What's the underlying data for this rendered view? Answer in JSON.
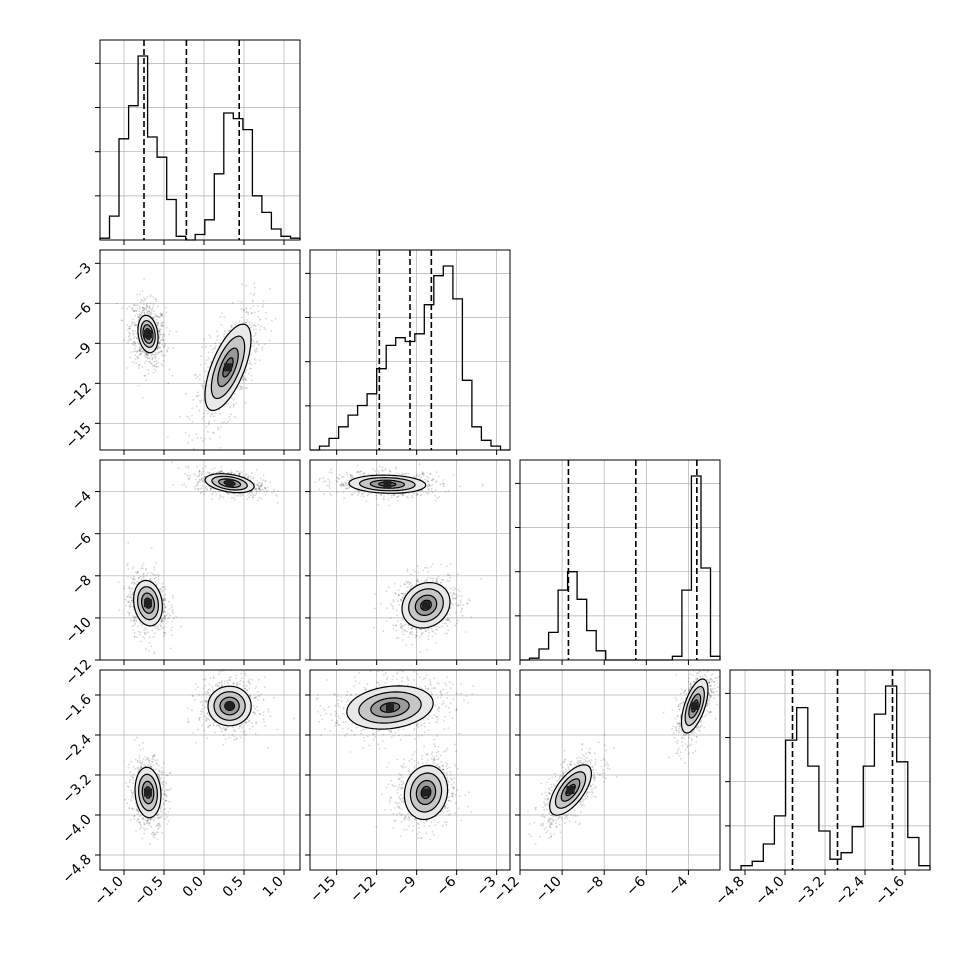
{
  "chart_data": {
    "type": "corner",
    "n_params": 4,
    "params": [
      {
        "index": 0,
        "range": [
          -1.3,
          1.2
        ],
        "ticks": [
          -1.0,
          -0.5,
          0.0,
          0.5,
          1.0
        ],
        "tick_labels": [
          "−1.0",
          "−0.5",
          "0.0",
          "0.5",
          "1.0"
        ],
        "quantiles": [
          -0.75,
          -0.22,
          0.44
        ],
        "hist_heights": [
          0.01,
          0.13,
          0.55,
          0.73,
          1.0,
          0.56,
          0.45,
          0.22,
          0.02,
          0.0,
          0.03,
          0.11,
          0.36,
          0.69,
          0.66,
          0.6,
          0.24,
          0.15,
          0.06,
          0.02,
          0.01
        ]
      },
      {
        "index": 1,
        "range": [
          -17.0,
          -2.0
        ],
        "ticks": [
          -15,
          -12,
          -9,
          -6,
          -3
        ],
        "tick_labels": [
          "−15",
          "−12",
          "−9",
          "−6",
          "−3"
        ],
        "quantiles": [
          -11.8,
          -9.5,
          -7.9
        ],
        "hist_heights": [
          0.0,
          0.02,
          0.06,
          0.12,
          0.18,
          0.23,
          0.29,
          0.42,
          0.54,
          0.58,
          0.56,
          0.6,
          0.75,
          0.9,
          0.95,
          0.78,
          0.36,
          0.12,
          0.05,
          0.02,
          0.0
        ]
      },
      {
        "index": 2,
        "range": [
          -12.0,
          -2.5
        ],
        "ticks": [
          -12,
          -10,
          -8,
          -6,
          -4
        ],
        "tick_labels": [
          "−12",
          "−10",
          "−8",
          "−6",
          "−4"
        ],
        "quantiles": [
          -9.7,
          -6.5,
          -3.6
        ],
        "hist_heights": [
          0.0,
          0.01,
          0.06,
          0.15,
          0.38,
          0.48,
          0.33,
          0.16,
          0.05,
          0.0,
          0.0,
          0.0,
          0.0,
          0.0,
          0.0,
          0.0,
          0.02,
          0.38,
          1.0,
          0.5,
          0.02
        ]
      },
      {
        "index": 3,
        "range": [
          -5.1,
          -1.1
        ],
        "ticks": [
          -4.8,
          -4.0,
          -3.2,
          -2.4,
          -1.6
        ],
        "tick_labels": [
          "−4.8",
          "−4.0",
          "−3.2",
          "−2.4",
          "−1.6"
        ],
        "quantiles": [
          -3.85,
          -2.95,
          -1.85
        ],
        "hist_heights": [
          0.0,
          0.02,
          0.04,
          0.12,
          0.25,
          0.6,
          0.75,
          0.48,
          0.18,
          0.05,
          0.08,
          0.2,
          0.48,
          0.72,
          0.85,
          0.5,
          0.15,
          0.02
        ]
      }
    ],
    "panels_2d": [
      {
        "x_param": 0,
        "y_param": 1,
        "modes": [
          {
            "cx": -0.7,
            "cy": -8.3,
            "sx": 0.09,
            "sy": 1.0,
            "rho": -0.2,
            "weight": 0.5,
            "levels": [
              0.4,
              0.7,
              1.0,
              1.4
            ]
          },
          {
            "cx": 0.3,
            "cy": -10.8,
            "sx": 0.16,
            "sy": 1.8,
            "rho": 0.65,
            "weight": 0.5,
            "levels": [
              0.4,
              0.8,
              1.3,
              1.8
            ]
          }
        ]
      },
      {
        "x_param": 0,
        "y_param": 2,
        "modes": [
          {
            "cx": 0.32,
            "cy": -3.6,
            "sx": 0.17,
            "sy": 0.25,
            "rho": -0.35,
            "weight": 0.5,
            "levels": [
              0.4,
              0.8,
              1.3,
              1.8
            ]
          },
          {
            "cx": -0.7,
            "cy": -9.3,
            "sx": 0.1,
            "sy": 0.6,
            "rho": -0.15,
            "weight": 0.5,
            "levels": [
              0.4,
              0.8,
              1.3,
              1.8
            ]
          }
        ]
      },
      {
        "x_param": 0,
        "y_param": 3,
        "modes": [
          {
            "cx": 0.32,
            "cy": -1.82,
            "sx": 0.15,
            "sy": 0.22,
            "rho": 0.0,
            "weight": 0.5,
            "levels": [
              0.4,
              0.8,
              1.3,
              1.8
            ]
          },
          {
            "cx": -0.7,
            "cy": -3.55,
            "sx": 0.09,
            "sy": 0.28,
            "rho": -0.1,
            "weight": 0.5,
            "levels": [
              0.4,
              0.8,
              1.3,
              1.8
            ]
          }
        ]
      },
      {
        "x_param": 1,
        "y_param": 2,
        "modes": [
          {
            "cx": -11.2,
            "cy": -3.65,
            "sx": 1.6,
            "sy": 0.24,
            "rho": -0.1,
            "weight": 0.5,
            "levels": [
              0.4,
              0.8,
              1.3,
              1.8
            ]
          },
          {
            "cx": -8.3,
            "cy": -9.4,
            "sx": 1.0,
            "sy": 0.6,
            "rho": 0.15,
            "weight": 0.5,
            "levels": [
              0.4,
              0.8,
              1.3,
              1.8
            ]
          }
        ]
      },
      {
        "x_param": 1,
        "y_param": 3,
        "modes": [
          {
            "cx": -11.0,
            "cy": -1.85,
            "sx": 1.8,
            "sy": 0.24,
            "rho": 0.2,
            "weight": 0.5,
            "levels": [
              0.4,
              0.8,
              1.3,
              1.8
            ]
          },
          {
            "cx": -8.3,
            "cy": -3.55,
            "sx": 0.9,
            "sy": 0.3,
            "rho": 0.1,
            "weight": 0.5,
            "levels": [
              0.4,
              0.8,
              1.3,
              1.8
            ]
          }
        ]
      },
      {
        "x_param": 2,
        "y_param": 3,
        "modes": [
          {
            "cx": -3.7,
            "cy": -1.82,
            "sx": 0.35,
            "sy": 0.3,
            "rho": 0.6,
            "weight": 0.5,
            "levels": [
              0.4,
              0.8,
              1.3,
              1.8
            ]
          },
          {
            "cx": -9.6,
            "cy": -3.5,
            "sx": 0.55,
            "sy": 0.28,
            "rho": 0.65,
            "weight": 0.5,
            "levels": [
              0.4,
              0.8,
              1.3,
              1.8
            ]
          }
        ]
      }
    ],
    "colors": {
      "line": "#000000",
      "grid": "#b0b0b0",
      "points": "#000000",
      "fill": [
        "#e8e8e8",
        "#c6c6c6",
        "#9a9a9a",
        "#6e6e6e"
      ]
    }
  }
}
